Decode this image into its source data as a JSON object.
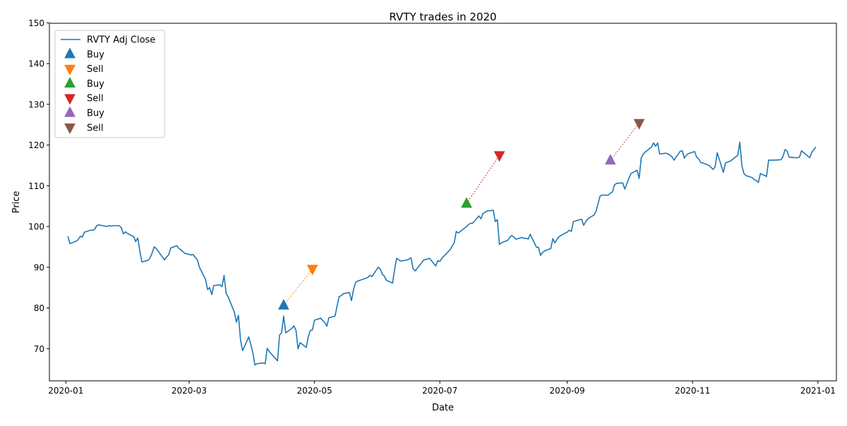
{
  "chart_data": {
    "type": "line",
    "title": "RVTY trades in 2020",
    "xlabel": "Date",
    "ylabel": "Price",
    "xlim": [
      "2019-12-24",
      "2021-01-10"
    ],
    "ylim": [
      62.1,
      149.9
    ],
    "x_ticks": [
      "2020-01",
      "2020-03",
      "2020-05",
      "2020-07",
      "2020-09",
      "2020-11",
      "2021-01"
    ],
    "y_ticks": [
      70,
      80,
      90,
      100,
      110,
      120,
      130,
      140,
      150
    ],
    "grid": false,
    "legend_position": "top-left",
    "series": [
      {
        "name": "RVTY Adj Close",
        "color": "#1f77b4",
        "points": [
          [
            "2020-01-02",
            97.6
          ],
          [
            "2020-01-03",
            95.8
          ],
          [
            "2020-01-06",
            96.4
          ],
          [
            "2020-01-07",
            96.8
          ],
          [
            "2020-01-08",
            97.6
          ],
          [
            "2020-01-09",
            97.4
          ],
          [
            "2020-01-10",
            98.6
          ],
          [
            "2020-01-13",
            99.1
          ],
          [
            "2020-01-14",
            99.1
          ],
          [
            "2020-01-15",
            99.3
          ],
          [
            "2020-01-16",
            100.2
          ],
          [
            "2020-01-17",
            100.4
          ],
          [
            "2020-01-21",
            100.0
          ],
          [
            "2020-01-22",
            100.2
          ],
          [
            "2020-01-23",
            100.1
          ],
          [
            "2020-01-24",
            100.2
          ],
          [
            "2020-01-27",
            100.2
          ],
          [
            "2020-01-28",
            99.7
          ],
          [
            "2020-01-29",
            98.2
          ],
          [
            "2020-01-30",
            98.7
          ],
          [
            "2020-01-31",
            98.3
          ],
          [
            "2020-02-03",
            97.5
          ],
          [
            "2020-02-04",
            96.3
          ],
          [
            "2020-02-05",
            97.2
          ],
          [
            "2020-02-06",
            94.0
          ],
          [
            "2020-02-07",
            91.3
          ],
          [
            "2020-02-10",
            91.7
          ],
          [
            "2020-02-11",
            92.3
          ],
          [
            "2020-02-12",
            93.5
          ],
          [
            "2020-02-13",
            95.0
          ],
          [
            "2020-02-14",
            94.6
          ],
          [
            "2020-02-18",
            91.8
          ],
          [
            "2020-02-19",
            92.5
          ],
          [
            "2020-02-20",
            93.0
          ],
          [
            "2020-02-21",
            94.7
          ],
          [
            "2020-02-24",
            95.3
          ],
          [
            "2020-02-25",
            94.6
          ],
          [
            "2020-02-26",
            94.3
          ],
          [
            "2020-02-27",
            93.8
          ],
          [
            "2020-02-28",
            93.4
          ],
          [
            "2020-03-02",
            93.0
          ],
          [
            "2020-03-03",
            93.1
          ],
          [
            "2020-03-04",
            92.4
          ],
          [
            "2020-03-05",
            91.8
          ],
          [
            "2020-03-06",
            90.0
          ],
          [
            "2020-03-09",
            87.0
          ],
          [
            "2020-03-10",
            84.5
          ],
          [
            "2020-03-11",
            85.0
          ],
          [
            "2020-03-12",
            83.3
          ],
          [
            "2020-03-13",
            85.5
          ],
          [
            "2020-03-16",
            85.7
          ],
          [
            "2020-03-17",
            85.2
          ],
          [
            "2020-03-18",
            88.0
          ],
          [
            "2020-03-19",
            83.6
          ],
          [
            "2020-03-20",
            82.7
          ],
          [
            "2020-03-23",
            79.0
          ],
          [
            "2020-03-24",
            76.5
          ],
          [
            "2020-03-25",
            78.2
          ],
          [
            "2020-03-26",
            72.2
          ],
          [
            "2020-03-27",
            69.5
          ],
          [
            "2020-03-30",
            72.9
          ],
          [
            "2020-03-31",
            71.0
          ],
          [
            "2020-04-01",
            69.0
          ],
          [
            "2020-04-02",
            66.0
          ],
          [
            "2020-04-03",
            66.3
          ],
          [
            "2020-04-06",
            66.5
          ],
          [
            "2020-04-07",
            66.3
          ],
          [
            "2020-04-08",
            70.1
          ],
          [
            "2020-04-09",
            69.3
          ],
          [
            "2020-04-13",
            67.0
          ],
          [
            "2020-04-14",
            73.3
          ],
          [
            "2020-04-15",
            74.0
          ],
          [
            "2020-04-16",
            78.0
          ],
          [
            "2020-04-17",
            73.9
          ],
          [
            "2020-04-20",
            75.0
          ],
          [
            "2020-04-21",
            75.6
          ],
          [
            "2020-04-22",
            74.5
          ],
          [
            "2020-04-23",
            70.0
          ],
          [
            "2020-04-24",
            71.5
          ],
          [
            "2020-04-27",
            70.3
          ],
          [
            "2020-04-28",
            73.0
          ],
          [
            "2020-04-29",
            74.5
          ],
          [
            "2020-04-30",
            74.6
          ],
          [
            "2020-05-01",
            77.0
          ],
          [
            "2020-05-04",
            77.5
          ],
          [
            "2020-05-05",
            76.9
          ],
          [
            "2020-05-06",
            76.5
          ],
          [
            "2020-05-07",
            75.5
          ],
          [
            "2020-05-08",
            77.6
          ],
          [
            "2020-05-11",
            78.0
          ],
          [
            "2020-05-12",
            80.5
          ],
          [
            "2020-05-13",
            82.8
          ],
          [
            "2020-05-14",
            83.0
          ],
          [
            "2020-05-15",
            83.5
          ],
          [
            "2020-05-18",
            83.8
          ],
          [
            "2020-05-19",
            81.8
          ],
          [
            "2020-05-20",
            84.5
          ],
          [
            "2020-05-21",
            86.3
          ],
          [
            "2020-05-22",
            86.6
          ],
          [
            "2020-05-26",
            87.3
          ],
          [
            "2020-05-27",
            87.5
          ],
          [
            "2020-05-28",
            88.0
          ],
          [
            "2020-05-29",
            87.7
          ],
          [
            "2020-06-01",
            90.0
          ],
          [
            "2020-06-02",
            89.6
          ],
          [
            "2020-06-03",
            88.3
          ],
          [
            "2020-06-04",
            87.8
          ],
          [
            "2020-06-05",
            86.8
          ],
          [
            "2020-06-08",
            86.1
          ],
          [
            "2020-06-09",
            89.5
          ],
          [
            "2020-06-10",
            92.2
          ],
          [
            "2020-06-11",
            91.8
          ],
          [
            "2020-06-12",
            91.5
          ],
          [
            "2020-06-15",
            91.8
          ],
          [
            "2020-06-16",
            92.0
          ],
          [
            "2020-06-17",
            92.3
          ],
          [
            "2020-06-18",
            89.6
          ],
          [
            "2020-06-19",
            89.1
          ],
          [
            "2020-06-22",
            91.0
          ],
          [
            "2020-06-23",
            91.7
          ],
          [
            "2020-06-24",
            91.9
          ],
          [
            "2020-06-25",
            92.0
          ],
          [
            "2020-06-26",
            92.2
          ],
          [
            "2020-06-29",
            90.3
          ],
          [
            "2020-06-30",
            91.6
          ],
          [
            "2020-07-01",
            91.4
          ],
          [
            "2020-07-02",
            92.2
          ],
          [
            "2020-07-06",
            94.3
          ],
          [
            "2020-07-07",
            95.2
          ],
          [
            "2020-07-08",
            96.0
          ],
          [
            "2020-07-09",
            98.8
          ],
          [
            "2020-07-10",
            98.4
          ],
          [
            "2020-07-13",
            99.6
          ],
          [
            "2020-07-14",
            100.0
          ],
          [
            "2020-07-15",
            100.5
          ],
          [
            "2020-07-16",
            100.8
          ],
          [
            "2020-07-17",
            100.8
          ],
          [
            "2020-07-20",
            102.6
          ],
          [
            "2020-07-21",
            101.9
          ],
          [
            "2020-07-22",
            103.2
          ],
          [
            "2020-07-23",
            103.5
          ],
          [
            "2020-07-24",
            103.8
          ],
          [
            "2020-07-27",
            104.0
          ],
          [
            "2020-07-28",
            101.2
          ],
          [
            "2020-07-29",
            101.7
          ],
          [
            "2020-07-30",
            95.6
          ],
          [
            "2020-07-31",
            96.0
          ],
          [
            "2020-08-03",
            96.6
          ],
          [
            "2020-08-04",
            97.3
          ],
          [
            "2020-08-05",
            97.8
          ],
          [
            "2020-08-06",
            97.4
          ],
          [
            "2020-08-07",
            96.9
          ],
          [
            "2020-08-10",
            97.3
          ],
          [
            "2020-08-11",
            97.1
          ],
          [
            "2020-08-12",
            97.1
          ],
          [
            "2020-08-13",
            96.9
          ],
          [
            "2020-08-14",
            98.1
          ],
          [
            "2020-08-17",
            94.9
          ],
          [
            "2020-08-18",
            94.9
          ],
          [
            "2020-08-19",
            92.9
          ],
          [
            "2020-08-20",
            93.6
          ],
          [
            "2020-08-21",
            94.0
          ],
          [
            "2020-08-24",
            94.6
          ],
          [
            "2020-08-25",
            97.0
          ],
          [
            "2020-08-26",
            96.0
          ],
          [
            "2020-08-27",
            96.8
          ],
          [
            "2020-08-28",
            97.5
          ],
          [
            "2020-08-31",
            98.4
          ],
          [
            "2020-09-01",
            98.6
          ],
          [
            "2020-09-02",
            99.1
          ],
          [
            "2020-09-03",
            98.8
          ],
          [
            "2020-09-04",
            101.2
          ],
          [
            "2020-09-08",
            101.8
          ],
          [
            "2020-09-09",
            100.3
          ],
          [
            "2020-09-10",
            101.2
          ],
          [
            "2020-09-11",
            101.9
          ],
          [
            "2020-09-14",
            102.8
          ],
          [
            "2020-09-15",
            103.7
          ],
          [
            "2020-09-16",
            105.6
          ],
          [
            "2020-09-17",
            107.5
          ],
          [
            "2020-09-18",
            107.7
          ],
          [
            "2020-09-21",
            107.7
          ],
          [
            "2020-09-22",
            108.2
          ],
          [
            "2020-09-23",
            108.5
          ],
          [
            "2020-09-24",
            110.2
          ],
          [
            "2020-09-25",
            110.6
          ],
          [
            "2020-09-28",
            110.7
          ],
          [
            "2020-09-29",
            109.2
          ],
          [
            "2020-09-30",
            110.5
          ],
          [
            "2020-10-01",
            111.8
          ],
          [
            "2020-10-02",
            113.0
          ],
          [
            "2020-10-05",
            113.8
          ],
          [
            "2020-10-06",
            111.8
          ],
          [
            "2020-10-07",
            116.8
          ],
          [
            "2020-10-08",
            117.8
          ],
          [
            "2020-10-09",
            118.3
          ],
          [
            "2020-10-12",
            119.5
          ],
          [
            "2020-10-13",
            120.5
          ],
          [
            "2020-10-14",
            119.7
          ],
          [
            "2020-10-15",
            120.5
          ],
          [
            "2020-10-16",
            117.8
          ],
          [
            "2020-10-19",
            118.0
          ],
          [
            "2020-10-20",
            117.8
          ],
          [
            "2020-10-21",
            117.5
          ],
          [
            "2020-10-22",
            117.1
          ],
          [
            "2020-10-23",
            116.3
          ],
          [
            "2020-10-26",
            118.5
          ],
          [
            "2020-10-27",
            118.6
          ],
          [
            "2020-10-28",
            116.8
          ],
          [
            "2020-10-29",
            117.5
          ],
          [
            "2020-10-30",
            117.9
          ],
          [
            "2020-11-02",
            118.4
          ],
          [
            "2020-11-03",
            117.0
          ],
          [
            "2020-11-04",
            116.6
          ],
          [
            "2020-11-05",
            115.7
          ],
          [
            "2020-11-06",
            115.6
          ],
          [
            "2020-11-09",
            115.0
          ],
          [
            "2020-11-10",
            114.5
          ],
          [
            "2020-11-11",
            114.0
          ],
          [
            "2020-11-12",
            114.7
          ],
          [
            "2020-11-13",
            118.1
          ],
          [
            "2020-11-16",
            113.3
          ],
          [
            "2020-11-17",
            115.6
          ],
          [
            "2020-11-18",
            115.8
          ],
          [
            "2020-11-19",
            116.0
          ],
          [
            "2020-11-20",
            116.3
          ],
          [
            "2020-11-23",
            117.5
          ],
          [
            "2020-11-24",
            120.7
          ],
          [
            "2020-11-25",
            114.9
          ],
          [
            "2020-11-26",
            113.0
          ],
          [
            "2020-11-27",
            112.5
          ],
          [
            "2020-11-30",
            112.0
          ],
          [
            "2020-12-01",
            111.5
          ],
          [
            "2020-12-02",
            111.3
          ],
          [
            "2020-12-03",
            110.8
          ],
          [
            "2020-12-04",
            113.0
          ],
          [
            "2020-12-07",
            112.3
          ],
          [
            "2020-12-08",
            116.3
          ],
          [
            "2020-12-09",
            116.3
          ],
          [
            "2020-12-10",
            116.3
          ],
          [
            "2020-12-11",
            116.3
          ],
          [
            "2020-12-14",
            116.4
          ],
          [
            "2020-12-15",
            117.2
          ],
          [
            "2020-12-16",
            118.9
          ],
          [
            "2020-12-17",
            118.5
          ],
          [
            "2020-12-18",
            117.0
          ],
          [
            "2020-12-21",
            116.9
          ],
          [
            "2020-12-22",
            116.9
          ],
          [
            "2020-12-23",
            117.0
          ],
          [
            "2020-12-24",
            118.6
          ],
          [
            "2020-12-28",
            116.9
          ],
          [
            "2020-12-29",
            118.2
          ],
          [
            "2020-12-30",
            118.9
          ],
          [
            "2020-12-31",
            119.5
          ]
        ]
      }
    ],
    "trades": [
      {
        "label": "Buy",
        "date": "2020-04-16",
        "price": 80.6,
        "color": "#1f77b4",
        "marker": "triangle-up"
      },
      {
        "label": "Sell",
        "date": "2020-04-30",
        "price": 89.6,
        "color": "#ff7f0e",
        "marker": "triangle-down"
      },
      {
        "label": "Buy",
        "date": "2020-07-14",
        "price": 105.6,
        "color": "#2ca02c",
        "marker": "triangle-up"
      },
      {
        "label": "Sell",
        "date": "2020-07-30",
        "price": 117.5,
        "color": "#d62728",
        "marker": "triangle-down"
      },
      {
        "label": "Buy",
        "date": "2020-09-22",
        "price": 116.2,
        "color": "#9467bd",
        "marker": "triangle-up"
      },
      {
        "label": "Sell",
        "date": "2020-10-06",
        "price": 125.4,
        "color": "#8c564b",
        "marker": "triangle-down"
      }
    ]
  }
}
